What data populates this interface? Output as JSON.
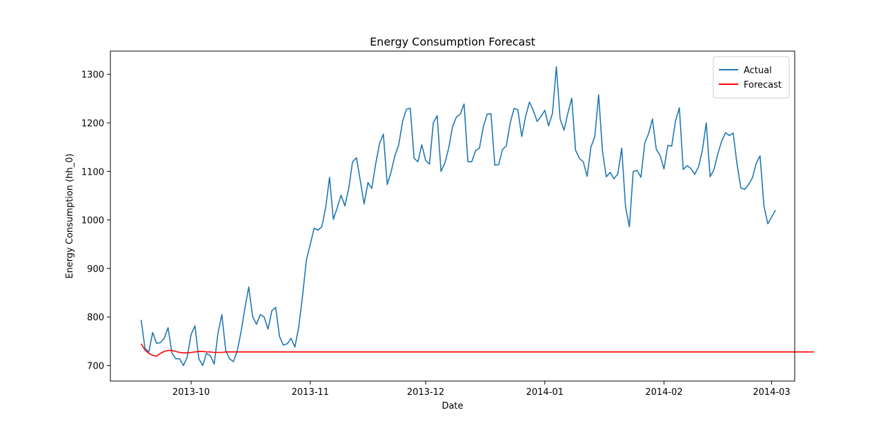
{
  "chart_data": {
    "type": "line",
    "title": "Energy Consumption Forecast",
    "xlabel": "Date",
    "ylabel": "Energy Consumption (hh_0)",
    "x_ticks": [
      "2013-10",
      "2013-11",
      "2013-12",
      "2014-01",
      "2014-02",
      "2014-03"
    ],
    "y_ticks": [
      700,
      800,
      900,
      1000,
      1100,
      1200,
      1300
    ],
    "xlim": [
      "2013-09-10",
      "2014-03-07"
    ],
    "ylim": [
      668,
      1348
    ],
    "grid": false,
    "legend_position": "top-right",
    "x_start": "2013-09-18",
    "series": [
      {
        "name": "Actual",
        "color": "#1f77b4",
        "values": [
          794,
          735,
          728,
          768,
          746,
          747,
          756,
          778,
          726,
          714,
          714,
          700,
          718,
          764,
          782,
          714,
          700,
          725,
          720,
          703,
          767,
          805,
          731,
          714,
          708,
          730,
          770,
          819,
          862,
          801,
          785,
          805,
          800,
          775,
          813,
          820,
          760,
          742,
          745,
          756,
          738,
          780,
          845,
          918,
          950,
          983,
          979,
          986,
          1025,
          1088,
          1001,
          1025,
          1051,
          1029,
          1065,
          1120,
          1128,
          1082,
          1033,
          1077,
          1065,
          1115,
          1157,
          1177,
          1073,
          1098,
          1132,
          1155,
          1203,
          1228,
          1230,
          1127,
          1120,
          1155,
          1123,
          1115,
          1200,
          1215,
          1100,
          1117,
          1148,
          1192,
          1212,
          1218,
          1239,
          1120,
          1120,
          1143,
          1148,
          1192,
          1218,
          1219,
          1113,
          1114,
          1145,
          1153,
          1200,
          1230,
          1227,
          1172,
          1213,
          1243,
          1226,
          1203,
          1213,
          1226,
          1194,
          1220,
          1316,
          1208,
          1185,
          1220,
          1251,
          1144,
          1127,
          1120,
          1090,
          1150,
          1172,
          1258,
          1142,
          1089,
          1098,
          1085,
          1095,
          1148,
          1027,
          986,
          1100,
          1102,
          1088,
          1159,
          1178,
          1208,
          1145,
          1133,
          1105,
          1154,
          1152,
          1204,
          1231,
          1104,
          1112,
          1106,
          1094,
          1110,
          1144,
          1200,
          1089,
          1104,
          1136,
          1162,
          1180,
          1174,
          1179,
          1115,
          1066,
          1063,
          1073,
          1087,
          1117,
          1132,
          1029,
          992,
          1006,
          1020
        ]
      },
      {
        "name": "Forecast",
        "color": "#ff0000",
        "values": [
          745,
          732,
          725,
          721,
          719,
          725,
          729,
          731,
          731,
          729,
          727,
          726,
          726,
          727,
          728,
          729,
          729,
          728,
          728,
          727,
          727,
          727,
          728,
          728,
          728,
          728,
          728,
          728,
          728,
          728,
          728,
          728,
          728,
          728,
          728,
          728,
          728,
          728,
          728,
          728,
          728,
          728,
          728,
          728,
          728,
          728,
          728,
          728,
          728,
          728,
          728,
          728,
          728,
          728,
          728,
          728,
          728,
          728,
          728,
          728,
          728,
          728,
          728,
          728,
          728,
          728,
          728,
          728,
          728,
          728,
          728,
          728,
          728,
          728,
          728,
          728,
          728,
          728,
          728,
          728,
          728,
          728,
          728,
          728,
          728,
          728,
          728,
          728,
          728,
          728,
          728,
          728,
          728,
          728,
          728,
          728,
          728,
          728,
          728,
          728,
          728,
          728,
          728,
          728,
          728,
          728,
          728,
          728,
          728,
          728,
          728,
          728,
          728,
          728,
          728,
          728,
          728,
          728,
          728,
          728,
          728,
          728,
          728,
          728,
          728,
          728,
          728,
          728,
          728,
          728,
          728,
          728,
          728,
          728,
          728,
          728,
          728,
          728,
          728,
          728,
          728,
          728,
          728,
          728,
          728,
          728,
          728,
          728,
          728,
          728,
          728,
          728,
          728,
          728,
          728,
          728,
          728,
          728,
          728,
          728,
          728,
          728,
          728,
          728,
          728,
          728,
          728,
          728,
          728,
          728,
          728,
          728,
          728,
          728,
          728,
          728
        ]
      }
    ]
  }
}
